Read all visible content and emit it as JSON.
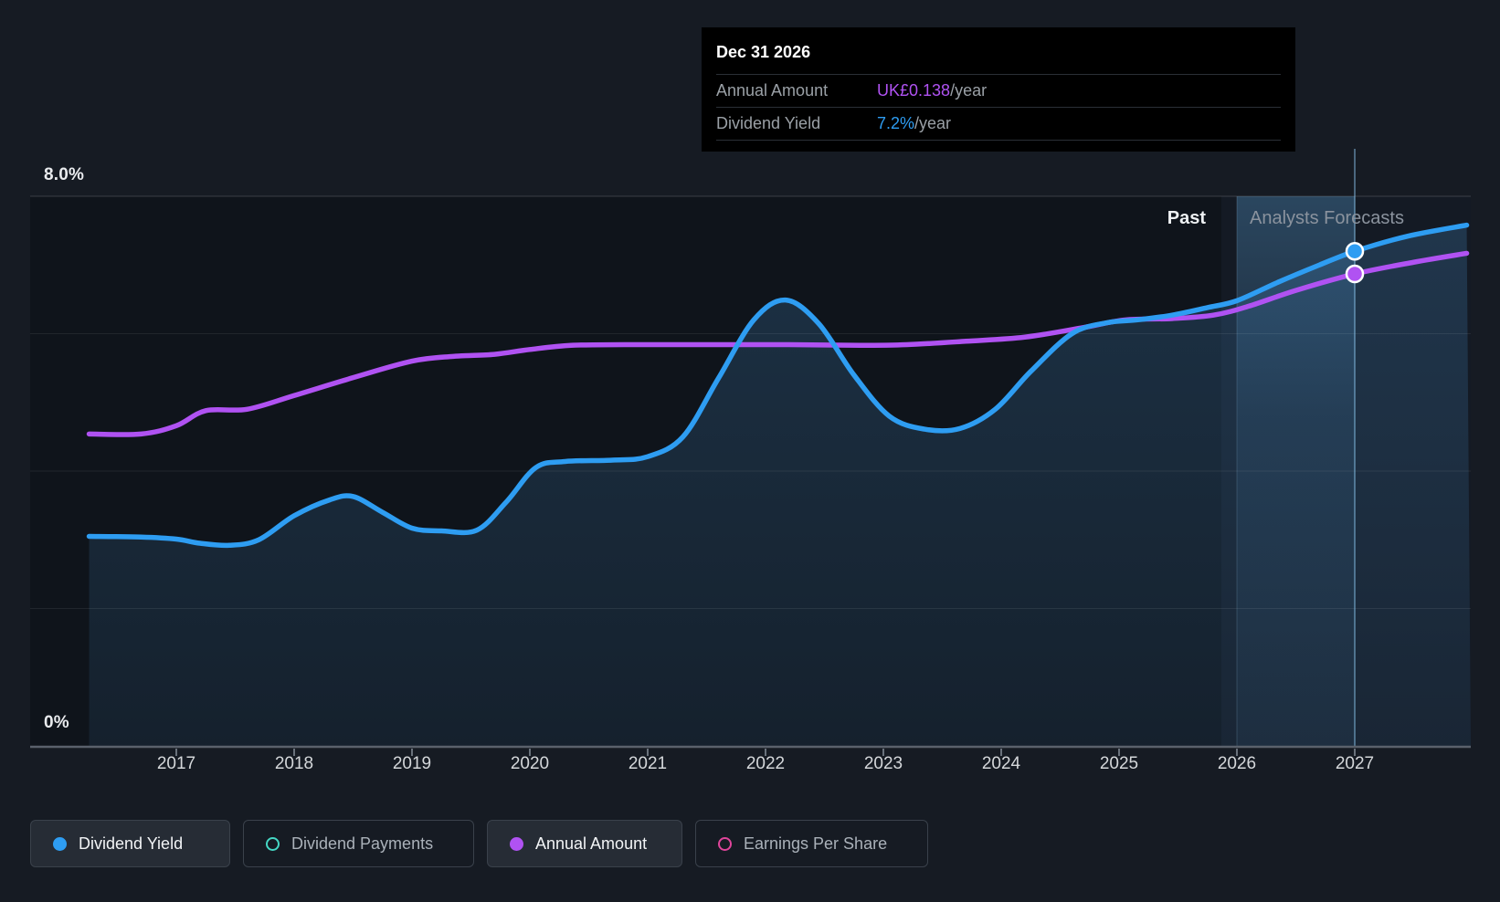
{
  "page": {
    "background": "#161b23"
  },
  "tooltip": {
    "date": "Dec 31 2026",
    "rows": [
      {
        "label": "Annual Amount",
        "value": "UK£0.138",
        "suffix": "/year",
        "color": "#b052f2"
      },
      {
        "label": "Dividend Yield",
        "value": "7.2%",
        "suffix": "/year",
        "color": "#2e9df2"
      }
    ]
  },
  "y_axis": {
    "max_label": "8.0%",
    "min_label": "0%"
  },
  "x_axis": {
    "years": [
      "2017",
      "2018",
      "2019",
      "2020",
      "2021",
      "2022",
      "2023",
      "2024",
      "2025",
      "2026",
      "2027"
    ]
  },
  "annotations": {
    "past_label": "Past",
    "forecast_label": "Analysts Forecasts"
  },
  "legend": [
    {
      "label": "Dividend Yield",
      "color": "#2e9df2",
      "style": "filled",
      "active": true
    },
    {
      "label": "Dividend Payments",
      "color": "#45d7c4",
      "style": "ring",
      "active": false
    },
    {
      "label": "Annual Amount",
      "color": "#b052f2",
      "style": "filled",
      "active": true
    },
    {
      "label": "Earnings Per Share",
      "color": "#e0459b",
      "style": "ring",
      "active": false
    }
  ],
  "chart_data": {
    "type": "line",
    "title": "Dividend yield history and analysts forecast",
    "x_range": [
      2016.26,
      2027.95
    ],
    "ylim_percent": [
      0,
      8
    ],
    "gridlines_percent": [
      8,
      6,
      4,
      2
    ],
    "baseline_percent": 0,
    "grid_on": true,
    "legend_position": "bottom",
    "forecast_divider_year": 2025.87,
    "hover": {
      "date": "Dec 31 2026",
      "year": 2027.0,
      "band_from_year": 2026.0,
      "band_to_year": 2027.0
    },
    "series": [
      {
        "name": "Dividend Yield",
        "unit": "percent",
        "color": "#2e9df2",
        "fill_under": true,
        "points": [
          [
            2016.26,
            3.05
          ],
          [
            2016.7,
            3.04
          ],
          [
            2017.0,
            3.01
          ],
          [
            2017.2,
            2.95
          ],
          [
            2017.45,
            2.92
          ],
          [
            2017.7,
            3.0
          ],
          [
            2018.0,
            3.35
          ],
          [
            2018.3,
            3.58
          ],
          [
            2018.5,
            3.63
          ],
          [
            2018.75,
            3.4
          ],
          [
            2019.0,
            3.17
          ],
          [
            2019.25,
            3.13
          ],
          [
            2019.55,
            3.14
          ],
          [
            2019.8,
            3.55
          ],
          [
            2020.05,
            4.05
          ],
          [
            2020.3,
            4.14
          ],
          [
            2020.7,
            4.16
          ],
          [
            2021.0,
            4.21
          ],
          [
            2021.3,
            4.5
          ],
          [
            2021.6,
            5.35
          ],
          [
            2021.9,
            6.2
          ],
          [
            2022.17,
            6.49
          ],
          [
            2022.45,
            6.15
          ],
          [
            2022.75,
            5.4
          ],
          [
            2023.05,
            4.8
          ],
          [
            2023.35,
            4.61
          ],
          [
            2023.65,
            4.62
          ],
          [
            2023.95,
            4.9
          ],
          [
            2024.25,
            5.45
          ],
          [
            2024.6,
            6.0
          ],
          [
            2024.9,
            6.16
          ],
          [
            2025.15,
            6.2
          ],
          [
            2025.45,
            6.27
          ],
          [
            2025.75,
            6.38
          ],
          [
            2026.0,
            6.48
          ],
          [
            2026.35,
            6.75
          ],
          [
            2026.7,
            7.0
          ],
          [
            2027.0,
            7.2
          ],
          [
            2027.45,
            7.42
          ],
          [
            2027.95,
            7.58
          ]
        ]
      },
      {
        "name": "Annual Amount",
        "unit": "plot-percent-equivalent",
        "color": "#b052f2",
        "fill_under": false,
        "points": [
          [
            2016.26,
            4.54
          ],
          [
            2016.7,
            4.54
          ],
          [
            2017.0,
            4.66
          ],
          [
            2017.25,
            4.88
          ],
          [
            2017.6,
            4.9
          ],
          [
            2018.0,
            5.1
          ],
          [
            2018.5,
            5.36
          ],
          [
            2019.0,
            5.6
          ],
          [
            2019.35,
            5.67
          ],
          [
            2019.7,
            5.7
          ],
          [
            2020.0,
            5.77
          ],
          [
            2020.35,
            5.83
          ],
          [
            2020.8,
            5.84
          ],
          [
            2021.5,
            5.84
          ],
          [
            2022.2,
            5.84
          ],
          [
            2022.8,
            5.83
          ],
          [
            2023.2,
            5.84
          ],
          [
            2023.7,
            5.89
          ],
          [
            2024.2,
            5.95
          ],
          [
            2024.7,
            6.09
          ],
          [
            2025.05,
            6.2
          ],
          [
            2025.45,
            6.22
          ],
          [
            2025.8,
            6.27
          ],
          [
            2026.1,
            6.4
          ],
          [
            2026.5,
            6.63
          ],
          [
            2027.0,
            6.87
          ],
          [
            2027.5,
            7.04
          ],
          [
            2027.95,
            7.17
          ]
        ],
        "value_anchor": {
          "year": 2027.0,
          "value": "UK£0.138/year"
        },
        "amount_gbp_estimates": [
          [
            2017,
            0.094
          ],
          [
            2018,
            0.102
          ],
          [
            2019,
            0.112
          ],
          [
            2020,
            0.116
          ],
          [
            2021,
            0.117
          ],
          [
            2022,
            0.117
          ],
          [
            2023,
            0.117
          ],
          [
            2024,
            0.12
          ],
          [
            2025,
            0.125
          ],
          [
            2026,
            0.128
          ],
          [
            2027,
            0.138
          ]
        ]
      }
    ],
    "markers": [
      {
        "series": "Dividend Yield",
        "year": 2027.0,
        "percent": 7.2,
        "color": "#2e9df2"
      },
      {
        "series": "Annual Amount",
        "year": 2027.0,
        "percent": 6.87,
        "color": "#b052f2"
      }
    ]
  }
}
